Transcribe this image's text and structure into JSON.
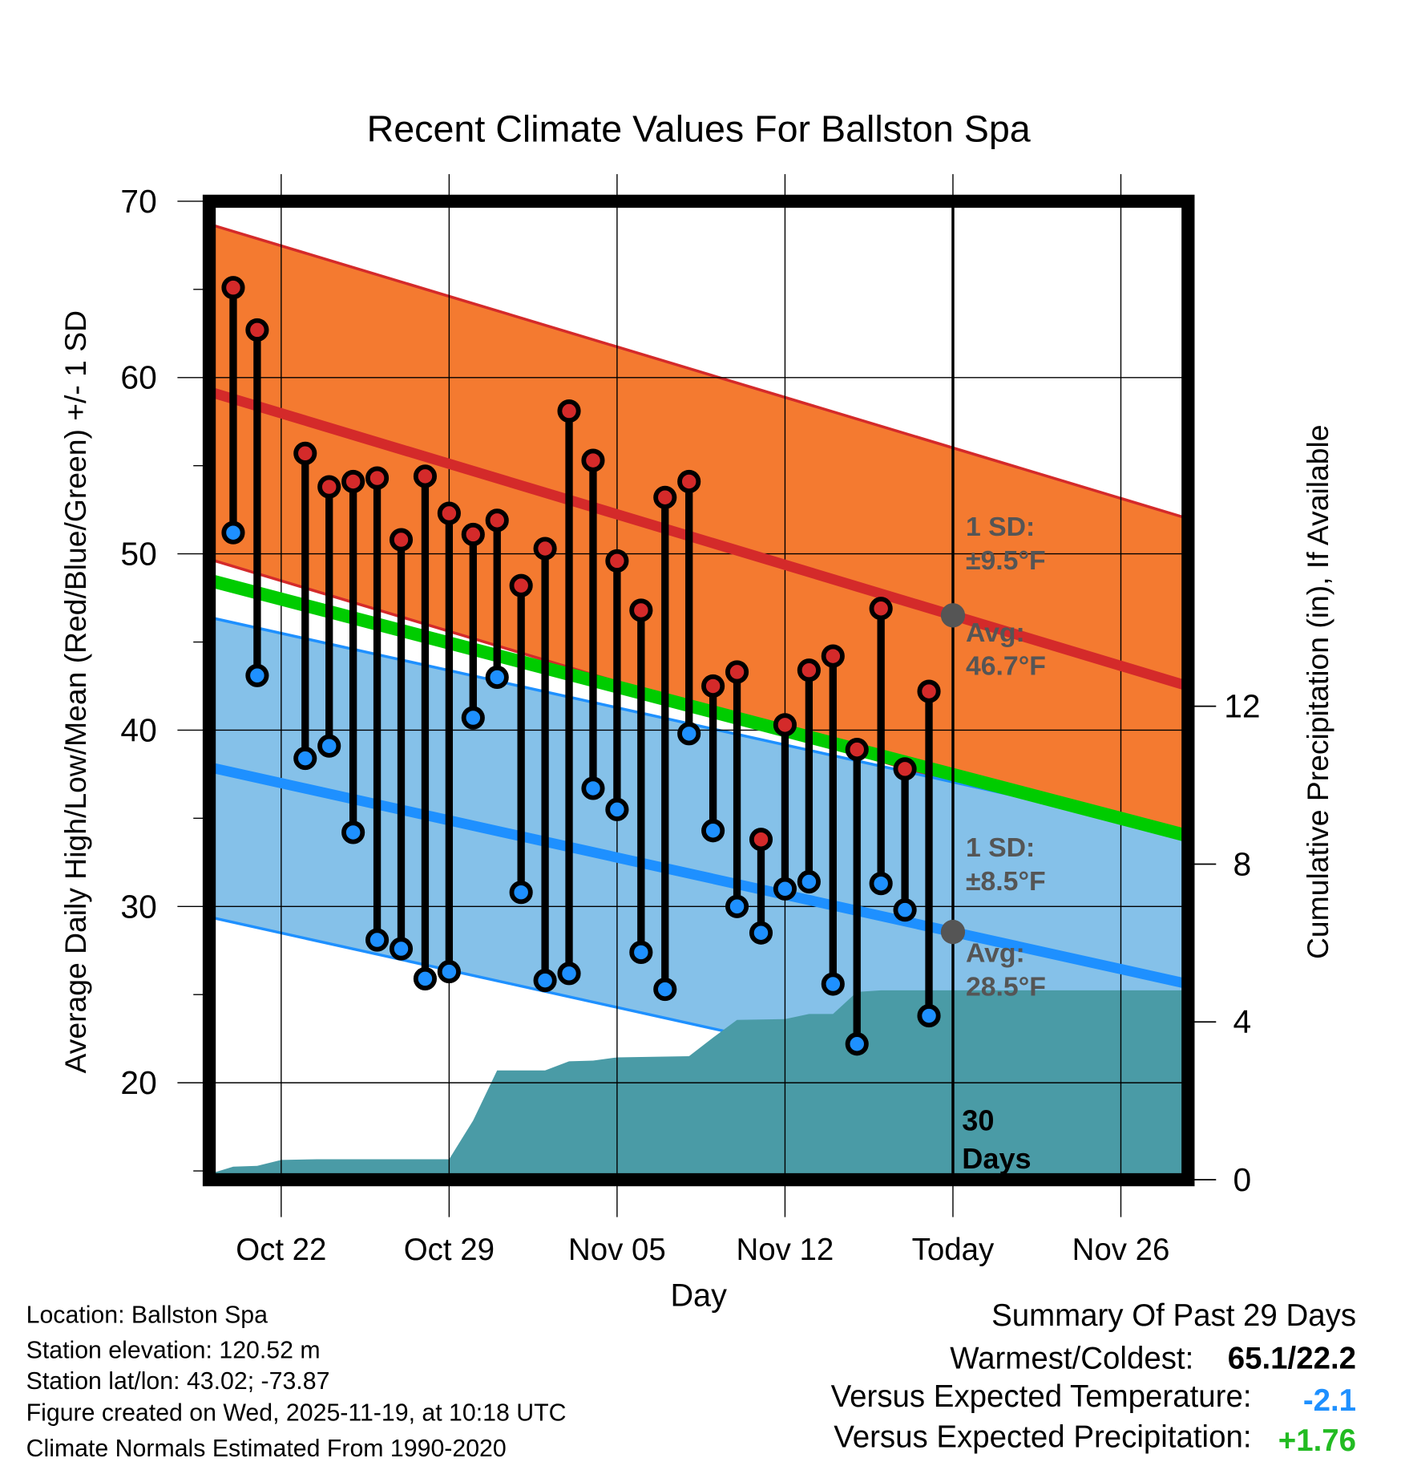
{
  "chart_data": {
    "type": "line",
    "title": "Recent Climate Values For Ballston Spa",
    "xlabel": "Day",
    "ylabel": "Average Daily High/Low/Mean (Red/Blue/Green) +/- 1 SD",
    "y2label": "Cumulative Precipitation (in), If Available",
    "x_origin_date": "Oct 19",
    "xlim_days": [
      0,
      40.8
    ],
    "ylim": [
      14.5,
      70
    ],
    "y2lim": [
      0,
      24.8
    ],
    "x_ticks": [
      {
        "day": 3,
        "label": "Oct 22"
      },
      {
        "day": 10,
        "label": "Oct 29"
      },
      {
        "day": 17,
        "label": "Nov 05"
      },
      {
        "day": 24,
        "label": "Nov 12"
      },
      {
        "day": 31,
        "label": "Today"
      },
      {
        "day": 38,
        "label": "Nov 26"
      }
    ],
    "y_ticks": [
      "20",
      "30",
      "40",
      "50",
      "60",
      "70"
    ],
    "y2_ticks": [
      "0",
      "4",
      "8",
      "12"
    ],
    "today_day": 31,
    "observations": {
      "days": [
        1,
        2,
        4,
        5,
        6,
        7,
        8,
        9,
        10,
        11,
        12,
        13,
        14,
        15,
        16,
        17,
        18,
        19,
        20,
        21,
        22,
        23,
        24,
        25,
        26,
        27,
        28,
        29,
        30
      ],
      "high": [
        65.1,
        62.7,
        55.7,
        53.8,
        54.1,
        54.3,
        50.8,
        54.4,
        52.3,
        51.1,
        51.9,
        48.2,
        50.3,
        58.1,
        55.3,
        49.6,
        46.8,
        53.2,
        54.1,
        42.5,
        43.3,
        33.8,
        40.3,
        43.4,
        44.2,
        38.9,
        46.9,
        37.8,
        42.2
      ],
      "low": [
        51.2,
        43.1,
        38.4,
        39.1,
        34.2,
        28.1,
        27.6,
        25.9,
        26.3,
        40.7,
        43.0,
        30.8,
        25.8,
        26.2,
        36.7,
        35.5,
        27.4,
        25.3,
        39.8,
        34.3,
        30.0,
        28.5,
        31.0,
        31.4,
        25.6,
        22.2,
        31.3,
        29.8,
        23.8
      ]
    },
    "normals": {
      "high_avg": {
        "start": 59.2,
        "end": 42.5,
        "sd": 9.5
      },
      "low_avg": {
        "start": 37.9,
        "end": 25.6,
        "sd": 8.5
      },
      "mean_avg": {
        "start": 48.5,
        "end": 34.0
      }
    },
    "cumulative_precip": {
      "days": [
        0.25,
        1,
        2,
        3,
        4.5,
        10,
        11,
        12,
        14,
        15,
        16,
        17,
        20,
        21,
        22,
        24,
        25,
        26,
        27,
        28,
        40.8
      ],
      "values": [
        0.19,
        0.33,
        0.35,
        0.5,
        0.52,
        0.52,
        1.5,
        2.77,
        2.77,
        3.0,
        3.02,
        3.1,
        3.13,
        3.6,
        4.05,
        4.07,
        4.2,
        4.2,
        4.76,
        4.8,
        4.8
      ]
    },
    "annotations": {
      "high_sd_label": "1 SD:",
      "high_sd_value": "±9.5°F",
      "high_avg_label": "Avg:",
      "high_avg_value": "46.7°F",
      "low_sd_label": "1 SD:",
      "low_sd_value": "±8.5°F",
      "low_avg_label": "Avg:",
      "low_avg_value": "28.5°F",
      "window_num": "30",
      "window_unit": "Days"
    },
    "colors": {
      "high_band": "#f47a30",
      "high_line": "#d42a2a",
      "low_band": "#85c1e9",
      "low_line": "#1e90ff",
      "mean_line": "#00cc00",
      "precip": "#4a9ba6"
    }
  },
  "footer": {
    "location": "Location: Ballston Spa",
    "elevation": "Station elevation: 120.52 m",
    "latlon": "Station lat/lon: 43.02; -73.87",
    "created": "Figure created on Wed, 2025-11-19, at 10:18 UTC",
    "normals": "Climate Normals Estimated From 1990-2020"
  },
  "summary": {
    "title": "Summary Of Past 29 Days",
    "warmest_label": "Warmest/Coldest:",
    "warmest_value": "65.1/22.2",
    "temp_label": "Versus Expected Temperature:",
    "temp_value": "-2.1",
    "precip_label": "Versus Expected Precipitation:",
    "precip_value": "+1.76",
    "temp_color": "#1e90ff",
    "precip_color": "#22bb22"
  }
}
